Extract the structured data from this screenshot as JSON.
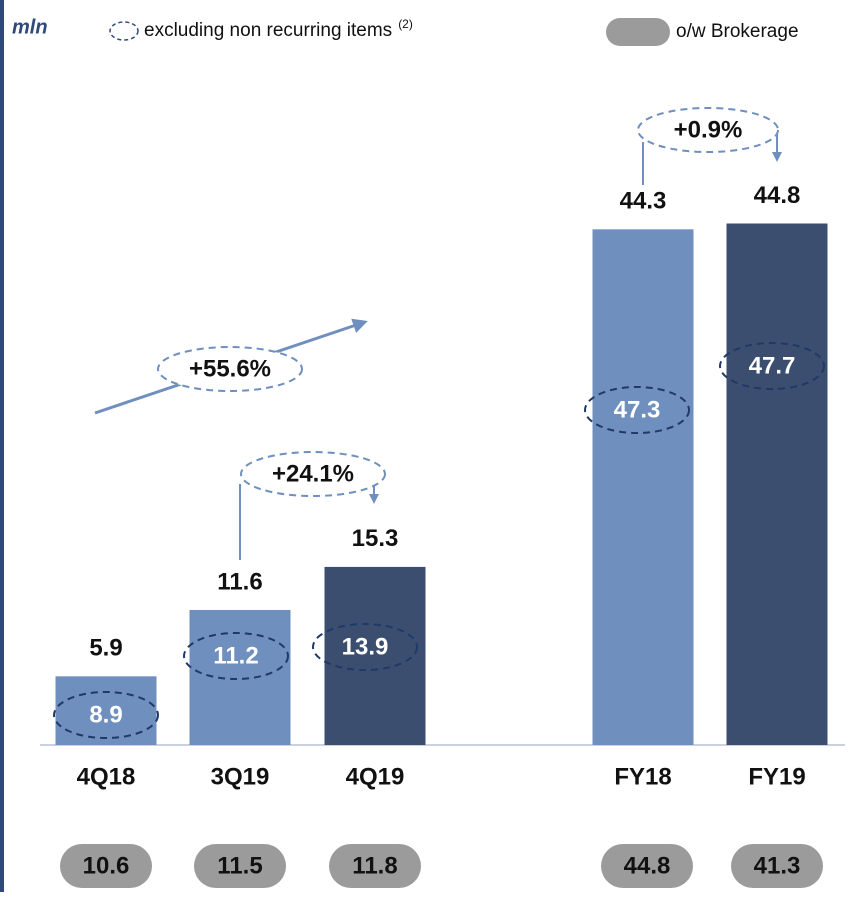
{
  "chart_data": {
    "type": "bar",
    "unit": "mln",
    "categories": [
      "4Q18",
      "3Q19",
      "4Q19",
      "FY18",
      "FY19"
    ],
    "values": [
      5.9,
      11.6,
      15.3,
      44.3,
      44.8
    ],
    "colors": [
      "#6f8fbf",
      "#6f8fbf",
      "#3b4e70",
      "#6f8fbf",
      "#3b4e70"
    ],
    "ylim": [
      0,
      64
    ],
    "excluding": {
      "label": "excluding non recurring items",
      "note": "(2)",
      "values": [
        8.9,
        11.2,
        13.9,
        47.3,
        47.7
      ]
    },
    "brokerage": {
      "label": "o/w Brokerage",
      "color": "#9b9b9b",
      "values": [
        10.6,
        11.5,
        11.8,
        44.8,
        41.3
      ]
    },
    "annotations": [
      "+55.6%",
      "+24.1%",
      "+0.9%"
    ]
  }
}
